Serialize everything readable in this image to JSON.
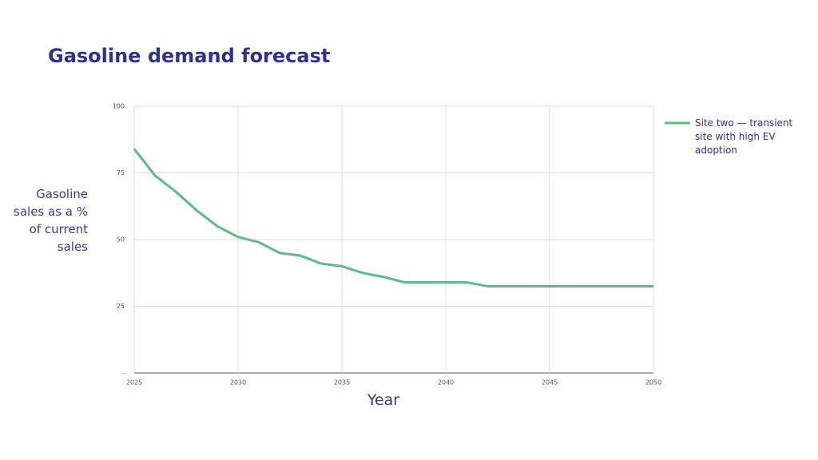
{
  "chart_data": {
    "type": "line",
    "title": "Gasoline demand forecast",
    "x_label": "Year",
    "y_label": "Gasoline sales as a % of current sales",
    "x": [
      2025,
      2026,
      2027,
      2028,
      2029,
      2030,
      2031,
      2032,
      2033,
      2034,
      2035,
      2036,
      2037,
      2038,
      2039,
      2040,
      2041,
      2042,
      2043,
      2044,
      2045,
      2046,
      2047,
      2048,
      2049,
      2050
    ],
    "series": [
      {
        "name": "Site two — transient site with high EV adoption",
        "color": "#5dbb8a",
        "values": [
          84,
          74,
          68,
          61,
          55,
          51,
          49,
          45,
          44,
          41,
          40,
          37.5,
          36,
          34,
          34,
          34,
          34,
          32.5,
          32.5,
          32.5,
          32.5,
          32.5,
          32.5,
          32.5,
          32.5,
          32.5
        ]
      }
    ],
    "xlim": [
      2025,
      2050
    ],
    "xticks": [
      2025,
      2030,
      2035,
      2040,
      2045,
      2050
    ],
    "ylim": [
      0,
      100
    ],
    "yticks": [
      {
        "value": 0,
        "label": "-"
      },
      25,
      50,
      75,
      100
    ],
    "grid": true,
    "legend": "right"
  }
}
